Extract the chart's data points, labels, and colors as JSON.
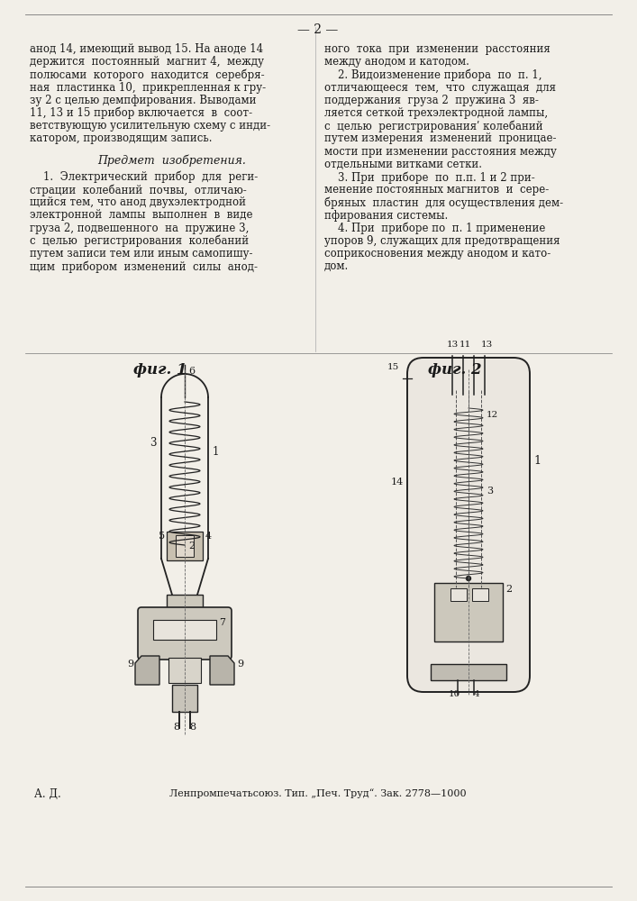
{
  "bg_color": "#f2efe8",
  "page_color": "#f2efe8",
  "text_color": "#1a1a1a",
  "top_marker": "— 2 —",
  "left_col_lines": [
    "анод 14, имеющий вывод 15. На аноде 14",
    "держится  постоянный  магнит 4,  между",
    "полюсами  которого  находится  серебря-",
    "ная  пластинка 10,  прикрепленная к гру-",
    "зу 2 с целью демпфирования. Выводами",
    "11, 13 и 15 прибор включается  в  соот-",
    "ветствующую усилительную схему с инди-",
    "катором, производящим запись."
  ],
  "predmet_title": "Предмет  изобретения.",
  "predmet_lines": [
    "    1.  Электрический  прибор  для  реги-",
    "страции  колебаний  почвы,  отличаю-",
    "щийся тем, что анод двухэлектродной",
    "электронной  лампы  выполнен  в  виде",
    "груза 2, подвешенного  на  пружине 3,",
    "с  целью  регистрирования  колебаний",
    "путем записи тем или иным самопишу-",
    "щим  прибором  изменений  силы  анод-"
  ],
  "right_col_lines": [
    "ного  тока  при  изменении  расстояния",
    "между анодом и катодом.",
    "    2. Видоизменение прибора  по  п. 1,",
    "отличающееся  тем,  что  служащая  для",
    "поддержания  груза 2  пружина 3  яв-",
    "ляется сеткой трехэлектродной лампы,",
    "с  целью  регистрированияʹ колебаний",
    "путем измерения  изменений  проницае-",
    "мости при изменении расстояния между",
    "отдельными витками сетки.",
    "    3. При  приборе  по  п.п. 1 и 2 при-",
    "менение постоянных магнитов  и  сере-",
    "бряных  пластин  для осуществления дем-",
    "пфирования системы.",
    "    4. При  приборе по  п. 1 применение",
    "упоров 9, служащих для предотвращения",
    "соприкосновения между анодом и като-",
    "дом."
  ],
  "fig1_label": "фиг. 1",
  "fig2_label": "фиг. 2",
  "footer_left": "А. Д.",
  "footer_right": "Ленпромпечатьсоюз. Тип. „Печ. Труд“. Зак. 2778—1000"
}
